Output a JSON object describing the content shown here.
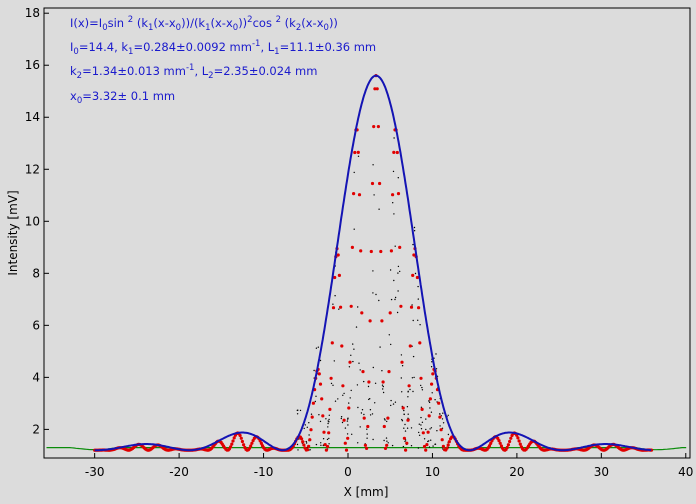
{
  "chart_data": {
    "type": "scatter",
    "xlabel": "X [mm]",
    "ylabel": "Intensity [mV]",
    "xlim": [
      -36,
      40.5
    ],
    "ylim": [
      0.9,
      18.2
    ],
    "xticks": [
      -30,
      -20,
      -10,
      0,
      10,
      20,
      30,
      40
    ],
    "yticks": [
      2,
      4,
      6,
      8,
      10,
      12,
      14,
      16,
      18
    ],
    "grid": false,
    "legend": "none",
    "colors": {
      "fit": "#1414b4",
      "measured": "#e00000",
      "raw": "#000000",
      "baseline": "#0a8c0a",
      "annotation": "#1a1acc",
      "background": "#dcdcdc"
    },
    "fit_parameters": {
      "I0": 14.4,
      "k1": 0.284,
      "k1_err": 0.0092,
      "L1": 11.1,
      "L1_err": 0.36,
      "k2": 1.34,
      "k2_err": 0.013,
      "L2": 2.35,
      "L2_err": 0.024,
      "x0": 3.32,
      "x0_err": 0.1
    },
    "fit_range": [
      -30,
      36
    ],
    "baseline_offset": 1.2,
    "fit_peak": 15.6,
    "measured_x_range": [
      -30,
      36
    ],
    "annotations": {
      "line1": "I(x)=I0sin 2 (k1(x-x0))/(k1(x-x0))2cos 2 (k2(x-x0))",
      "line2": "I0=14.4, k1=0.284±0.0092 mm-1, L1=11.1±0.36 mm",
      "line3": "k2=1.34±0.013 mm-1, L2=2.35±0.024 mm",
      "line4": "x0=3.32± 0.1 mm"
    }
  }
}
